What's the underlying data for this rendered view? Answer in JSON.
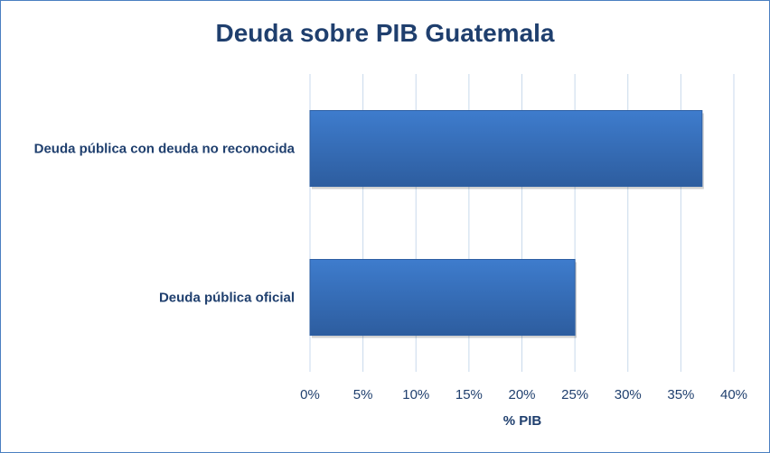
{
  "chart_data": {
    "type": "bar",
    "orientation": "horizontal",
    "title": "Deuda sobre PIB Guatemala",
    "xlabel": "% PIB",
    "ylabel": "",
    "categories": [
      "Deuda pública con deuda no reconocida",
      "Deuda pública oficial"
    ],
    "values": [
      37,
      25
    ],
    "xlim": [
      0,
      40
    ],
    "x_ticks": [
      "0%",
      "5%",
      "10%",
      "15%",
      "20%",
      "25%",
      "30%",
      "35%",
      "40%"
    ],
    "grid": true,
    "legend": "none",
    "colors": {
      "bar": "#3a74c4",
      "bar_dark": "#2e5fa3",
      "grid": "#c8d9ec",
      "text": "#1f3f6e",
      "border": "#4a7fc1"
    }
  }
}
